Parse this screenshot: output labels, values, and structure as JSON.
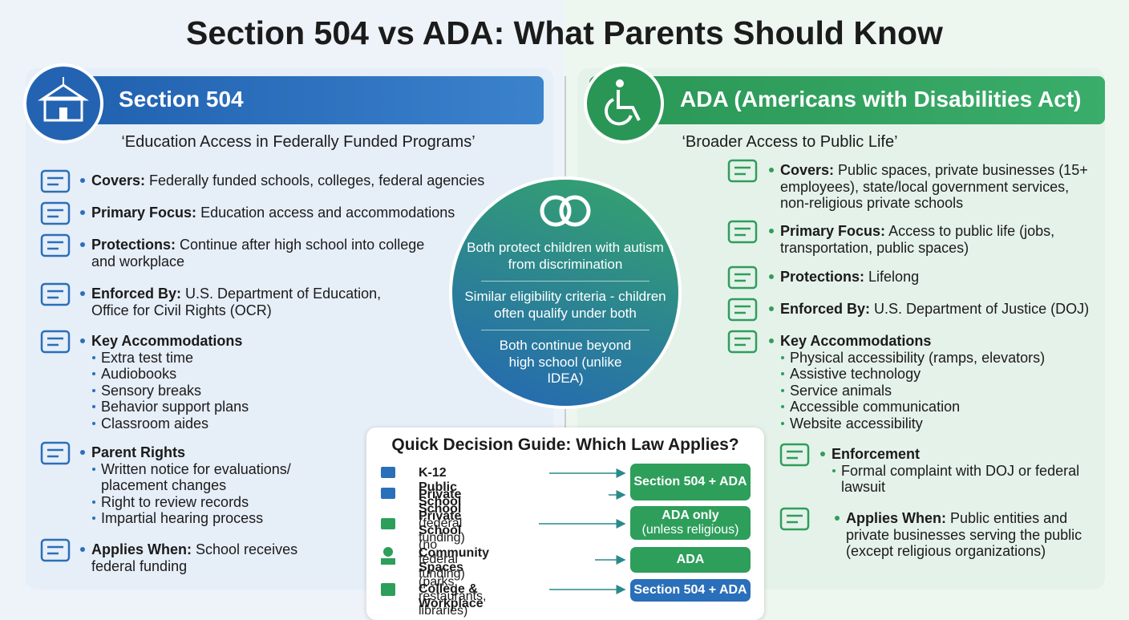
{
  "title": "Section 504 vs ADA: What Parents Should Know",
  "left": {
    "heading": "Section 504",
    "subtitle": "‘Education Access in Federally Funded Programs’",
    "items": [
      {
        "label": "Covers:",
        "text": "Federally funded schools, colleges, federal agencies"
      },
      {
        "label": "Primary Focus:",
        "text": "Education access and accommodations"
      },
      {
        "label": "Protections:",
        "text": "Continue after high school into college and workplace"
      },
      {
        "label": "Enforced By:",
        "text": "U.S. Department of Education, Office for Civil Rights (OCR)"
      },
      {
        "label": "Key Accommodations",
        "bullets": [
          "Extra test time",
          "Audiobooks",
          "Sensory breaks",
          "Behavior support plans",
          "Classroom aides"
        ]
      },
      {
        "label": "Parent Rights",
        "bullets": [
          "Written notice for evaluations/ placement changes",
          "Right to review records",
          "Impartial hearing process"
        ]
      },
      {
        "label": "Applies When:",
        "text": "School receives federal funding"
      }
    ]
  },
  "right": {
    "heading": "ADA (Americans with Disabilities Act)",
    "subtitle": "‘Broader Access to Public Life’",
    "items": [
      {
        "label": "Covers:",
        "text": "Public spaces, private businesses (15+ employees), state/local government services, non-religious private schools"
      },
      {
        "label": "Primary Focus:",
        "text": "Access to public life (jobs, transportation, public spaces)"
      },
      {
        "label": "Protections:",
        "text": "Lifelong"
      },
      {
        "label": "Enforced By:",
        "text": "U.S. Department of Justice (DOJ)"
      },
      {
        "label": "Key Accommodations",
        "bullets": [
          "Physical accessibility (ramps, elevators)",
          "Assistive technology",
          "Service animals",
          "Accessible communication",
          "Website accessibility"
        ]
      },
      {
        "label": "Enforcement",
        "bullets": [
          "Formal complaint with DOJ or federal lawsuit"
        ]
      },
      {
        "label": "Applies When:",
        "text": "Public entities and private businesses serving the public (except religious organizations)"
      }
    ]
  },
  "center": {
    "points": [
      "Both protect children with autism from discrimination",
      "Similar eligibility criteria - children often qualify under both",
      "Both continue beyond high school (unlike IDEA)"
    ]
  },
  "guide": {
    "title": "Quick Decision Guide: Which Law Applies?",
    "rows": [
      {
        "label": "K-12 Public School"
      },
      {
        "label": "Private School",
        "note": "(federal funding)"
      },
      {
        "label": "Private School",
        "note": "(no federal funding)"
      },
      {
        "label": "Community Spaces",
        "note": "(parks, restaurants, libraries)"
      },
      {
        "label": "College & Workplace"
      }
    ],
    "outcomes": [
      {
        "text": "Section 504 + ADA"
      },
      {
        "text": "ADA only",
        "note": "(unless religious)"
      },
      {
        "text": "ADA"
      },
      {
        "text": "Section 504 + ADA"
      }
    ]
  }
}
